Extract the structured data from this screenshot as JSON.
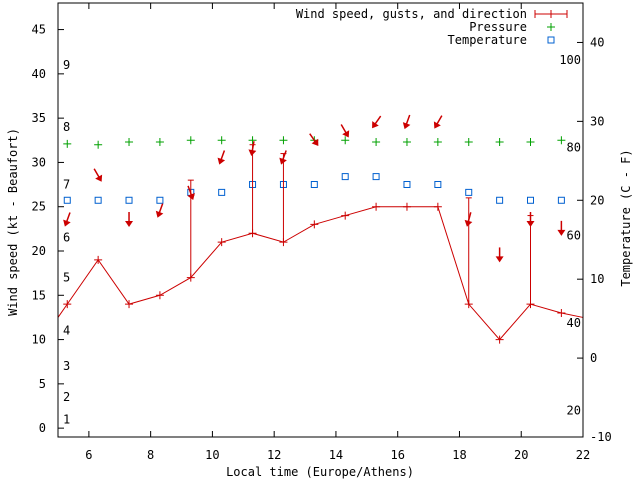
{
  "chart_data": {
    "type": "line",
    "xlabel": "Local time (Europe/Athens)",
    "ylabel_left": "Wind speed (kt - Beaufort)",
    "ylabel_right": "Temperature (C - F)",
    "x_range": [
      5,
      22
    ],
    "x_ticks": [
      6,
      8,
      10,
      12,
      14,
      16,
      18,
      20,
      22
    ],
    "y_left_range": [
      -1,
      48
    ],
    "y_left_ticks": [
      0,
      5,
      10,
      15,
      20,
      25,
      30,
      35,
      40,
      45
    ],
    "y_right_range": [
      -10,
      45
    ],
    "y_right_ticks": [
      -10,
      0,
      10,
      20,
      30,
      40
    ],
    "fahrenheit_labels": [
      {
        "f": 20,
        "text": "20"
      },
      {
        "f": 40,
        "text": "40"
      },
      {
        "f": 60,
        "text": "60"
      },
      {
        "f": 80,
        "text": "80"
      },
      {
        "f": 100,
        "text": "100"
      }
    ],
    "beaufort_labels": [
      {
        "kt": 1,
        "text": "1"
      },
      {
        "kt": 3.5,
        "text": "2"
      },
      {
        "kt": 7,
        "text": "3"
      },
      {
        "kt": 11,
        "text": "4"
      },
      {
        "kt": 17,
        "text": "5"
      },
      {
        "kt": 21.5,
        "text": "6"
      },
      {
        "kt": 27.5,
        "text": "7"
      },
      {
        "kt": 34,
        "text": "8"
      },
      {
        "kt": 41,
        "text": "9"
      }
    ],
    "series": [
      {
        "name": "Wind speed, gusts, and direction",
        "color": "#cc0000",
        "start_value": [
          5,
          12.5
        ],
        "end_value": [
          22,
          12.5
        ],
        "points": [
          {
            "x": 5.3,
            "speed": 14,
            "gust": null,
            "dir": 200
          },
          {
            "x": 6.3,
            "speed": 19,
            "gust": null,
            "dir": 150
          },
          {
            "x": 7.3,
            "speed": 14,
            "gust": null,
            "dir": 180
          },
          {
            "x": 8.3,
            "speed": 15,
            "gust": null,
            "dir": 200
          },
          {
            "x": 9.3,
            "speed": 17,
            "gust": 28,
            "dir": 160
          },
          {
            "x": 10.3,
            "speed": 21,
            "gust": null,
            "dir": 200
          },
          {
            "x": 11.3,
            "speed": 22,
            "gust": 32,
            "dir": 190
          },
          {
            "x": 12.3,
            "speed": 21,
            "gust": 31,
            "dir": 200
          },
          {
            "x": 13.3,
            "speed": 23,
            "gust": null,
            "dir": 145
          },
          {
            "x": 14.3,
            "speed": 24,
            "gust": null,
            "dir": 150
          },
          {
            "x": 15.3,
            "speed": 25,
            "gust": null,
            "dir": 215
          },
          {
            "x": 16.3,
            "speed": 25,
            "gust": null,
            "dir": 200
          },
          {
            "x": 17.3,
            "speed": 25,
            "gust": null,
            "dir": 210
          },
          {
            "x": 18.3,
            "speed": 14,
            "gust": 26,
            "dir": 195
          },
          {
            "x": 19.3,
            "speed": 10,
            "gust": null,
            "dir": 180
          },
          {
            "x": 20.3,
            "speed": 14,
            "gust": 24,
            "dir": 180
          },
          {
            "x": 21.3,
            "speed": 13,
            "gust": null,
            "dir": 180
          }
        ]
      },
      {
        "name": "Pressure",
        "color": "#00a000",
        "marker": "+",
        "points": [
          {
            "x": 5.3,
            "y": 32.1
          },
          {
            "x": 6.3,
            "y": 32.0
          },
          {
            "x": 7.3,
            "y": 32.3
          },
          {
            "x": 8.3,
            "y": 32.3
          },
          {
            "x": 9.3,
            "y": 32.5
          },
          {
            "x": 10.3,
            "y": 32.5
          },
          {
            "x": 11.3,
            "y": 32.5
          },
          {
            "x": 12.3,
            "y": 32.5
          },
          {
            "x": 13.3,
            "y": 32.5
          },
          {
            "x": 14.3,
            "y": 32.5
          },
          {
            "x": 15.3,
            "y": 32.3
          },
          {
            "x": 16.3,
            "y": 32.3
          },
          {
            "x": 17.3,
            "y": 32.3
          },
          {
            "x": 18.3,
            "y": 32.3
          },
          {
            "x": 19.3,
            "y": 32.3
          },
          {
            "x": 20.3,
            "y": 32.3
          },
          {
            "x": 21.3,
            "y": 32.5
          }
        ]
      },
      {
        "name": "Temperature",
        "color": "#0060d0",
        "marker": "square",
        "points": [
          {
            "x": 5.3,
            "y": 20
          },
          {
            "x": 6.3,
            "y": 20
          },
          {
            "x": 7.3,
            "y": 20
          },
          {
            "x": 8.3,
            "y": 20
          },
          {
            "x": 9.3,
            "y": 21
          },
          {
            "x": 10.3,
            "y": 21
          },
          {
            "x": 11.3,
            "y": 22
          },
          {
            "x": 12.3,
            "y": 22
          },
          {
            "x": 13.3,
            "y": 22
          },
          {
            "x": 14.3,
            "y": 23
          },
          {
            "x": 15.3,
            "y": 23
          },
          {
            "x": 16.3,
            "y": 22
          },
          {
            "x": 17.3,
            "y": 22
          },
          {
            "x": 18.3,
            "y": 21
          },
          {
            "x": 19.3,
            "y": 20
          },
          {
            "x": 20.3,
            "y": 20
          },
          {
            "x": 21.3,
            "y": 20
          }
        ]
      }
    ]
  }
}
